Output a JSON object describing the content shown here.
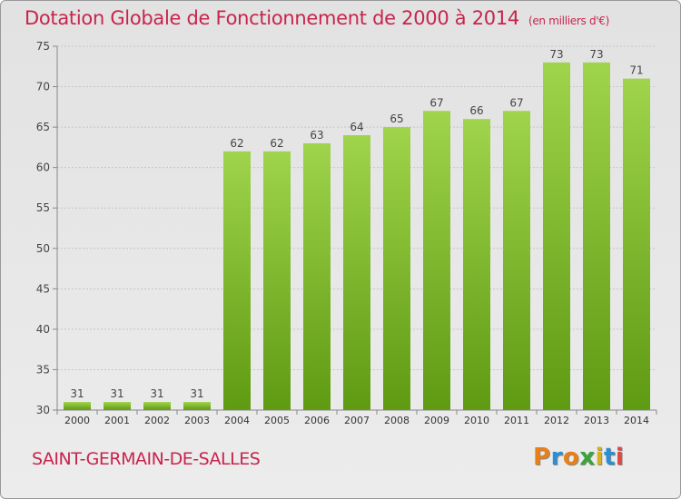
{
  "title": "Dotation Globale de Fonctionnement de 2000 à 2014",
  "subtitle": "(en milliers d'€)",
  "commune": "SAINT-GERMAIN-DE-SALLES",
  "logo": {
    "text": "Proxiti",
    "colors": [
      "#e8801a",
      "#2a8fd4",
      "#e8801a",
      "#3aa43a",
      "#d8b020",
      "#2a8fd4",
      "#e04848"
    ]
  },
  "colors": {
    "bar_top": "#9fd44c",
    "bar_bottom": "#5e9a12",
    "title": "#c8244c",
    "axis": "#888888"
  },
  "chart_data": {
    "type": "bar",
    "categories": [
      "2000",
      "2001",
      "2002",
      "2003",
      "2004",
      "2005",
      "2006",
      "2007",
      "2008",
      "2009",
      "2010",
      "2011",
      "2012",
      "2013",
      "2014"
    ],
    "values": [
      31,
      31,
      31,
      31,
      62,
      62,
      63,
      64,
      65,
      67,
      66,
      67,
      73,
      73,
      71
    ],
    "ylim": [
      30,
      75
    ],
    "yticks": [
      30,
      35,
      40,
      45,
      50,
      55,
      60,
      65,
      70,
      75
    ],
    "grid": true,
    "data_labels": true,
    "xlabel": "",
    "ylabel": ""
  }
}
